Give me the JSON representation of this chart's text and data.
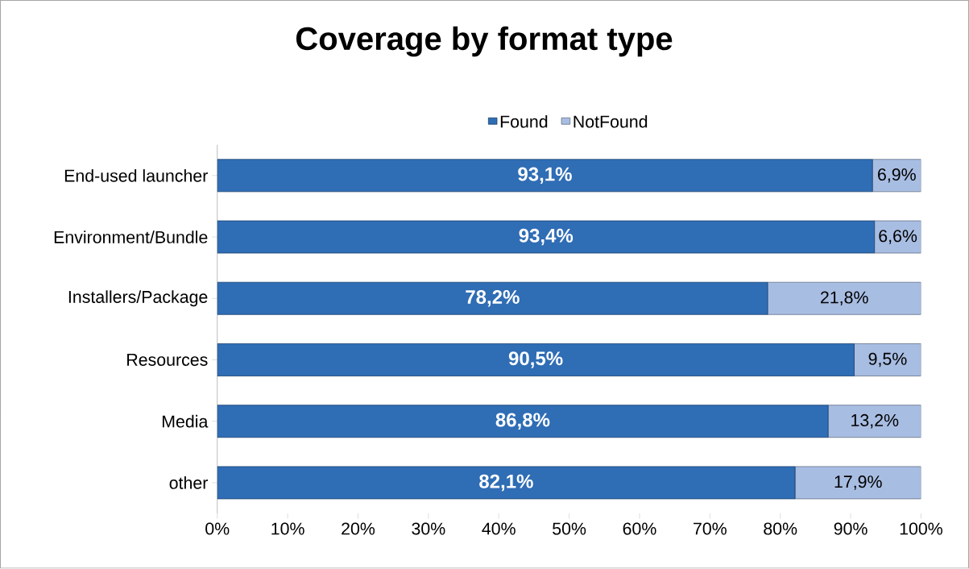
{
  "chart_data": {
    "type": "bar",
    "orientation": "horizontal",
    "stacked": true,
    "title": "Coverage by format type",
    "categories": [
      "End-used launcher",
      "Environment/Bundle",
      "Installers/Package",
      "Resources",
      "Media",
      "other"
    ],
    "series": [
      {
        "name": "Found",
        "color": "#2f6db5",
        "values": [
          93.1,
          93.4,
          78.2,
          90.5,
          86.8,
          82.1
        ],
        "value_labels": [
          "93,1%",
          "93,4%",
          "78,2%",
          "90,5%",
          "86,8%",
          "82,1%"
        ]
      },
      {
        "name": "NotFound",
        "color": "#a8bde2",
        "values": [
          6.9,
          6.6,
          21.8,
          9.5,
          13.2,
          17.9
        ],
        "value_labels": [
          "6,9%",
          "6,6%",
          "21,8%",
          "9,5%",
          "13,2%",
          "17,9%"
        ]
      }
    ],
    "xlim": [
      0,
      100
    ],
    "xticks": [
      {
        "value": 0,
        "label": "0%"
      },
      {
        "value": 10,
        "label": "10%"
      },
      {
        "value": 20,
        "label": "20%"
      },
      {
        "value": 30,
        "label": "30%"
      },
      {
        "value": 40,
        "label": "40%"
      },
      {
        "value": 50,
        "label": "50%"
      },
      {
        "value": 60,
        "label": "60%"
      },
      {
        "value": 70,
        "label": "70%"
      },
      {
        "value": 80,
        "label": "80%"
      },
      {
        "value": 90,
        "label": "90%"
      },
      {
        "value": 100,
        "label": "100%"
      }
    ],
    "legend": "top",
    "grid": false
  }
}
